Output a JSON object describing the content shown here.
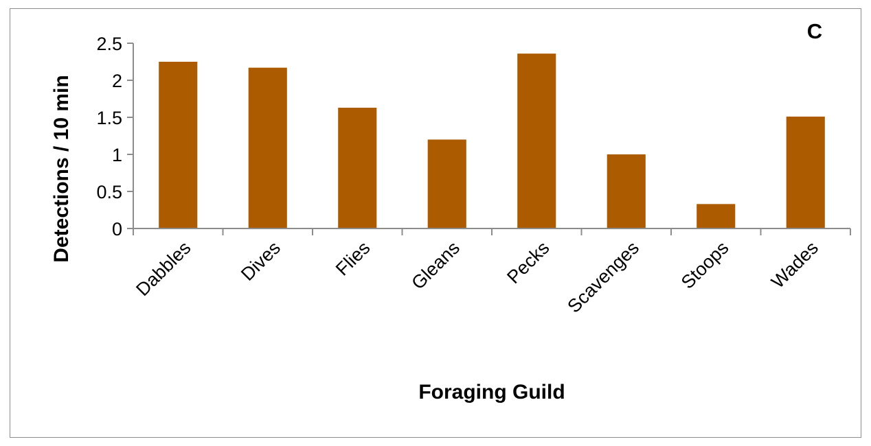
{
  "chart_data": {
    "type": "bar",
    "panel_label": "C",
    "xlabel": "Foraging Guild",
    "ylabel": "Detections / 10 min",
    "categories": [
      "Dabbles",
      "Dives",
      "Flies",
      "Gleans",
      "Pecks",
      "Scavenges",
      "Stoops",
      "Wades"
    ],
    "values": [
      2.25,
      2.17,
      1.63,
      1.2,
      2.36,
      1.0,
      0.33,
      1.51
    ],
    "ylim": [
      0,
      2.5
    ],
    "yticks": [
      "0",
      "0.5",
      "1",
      "1.5",
      "2",
      "2.5"
    ],
    "grid": false,
    "legend": "none",
    "bar_color": "#ad5b00"
  }
}
